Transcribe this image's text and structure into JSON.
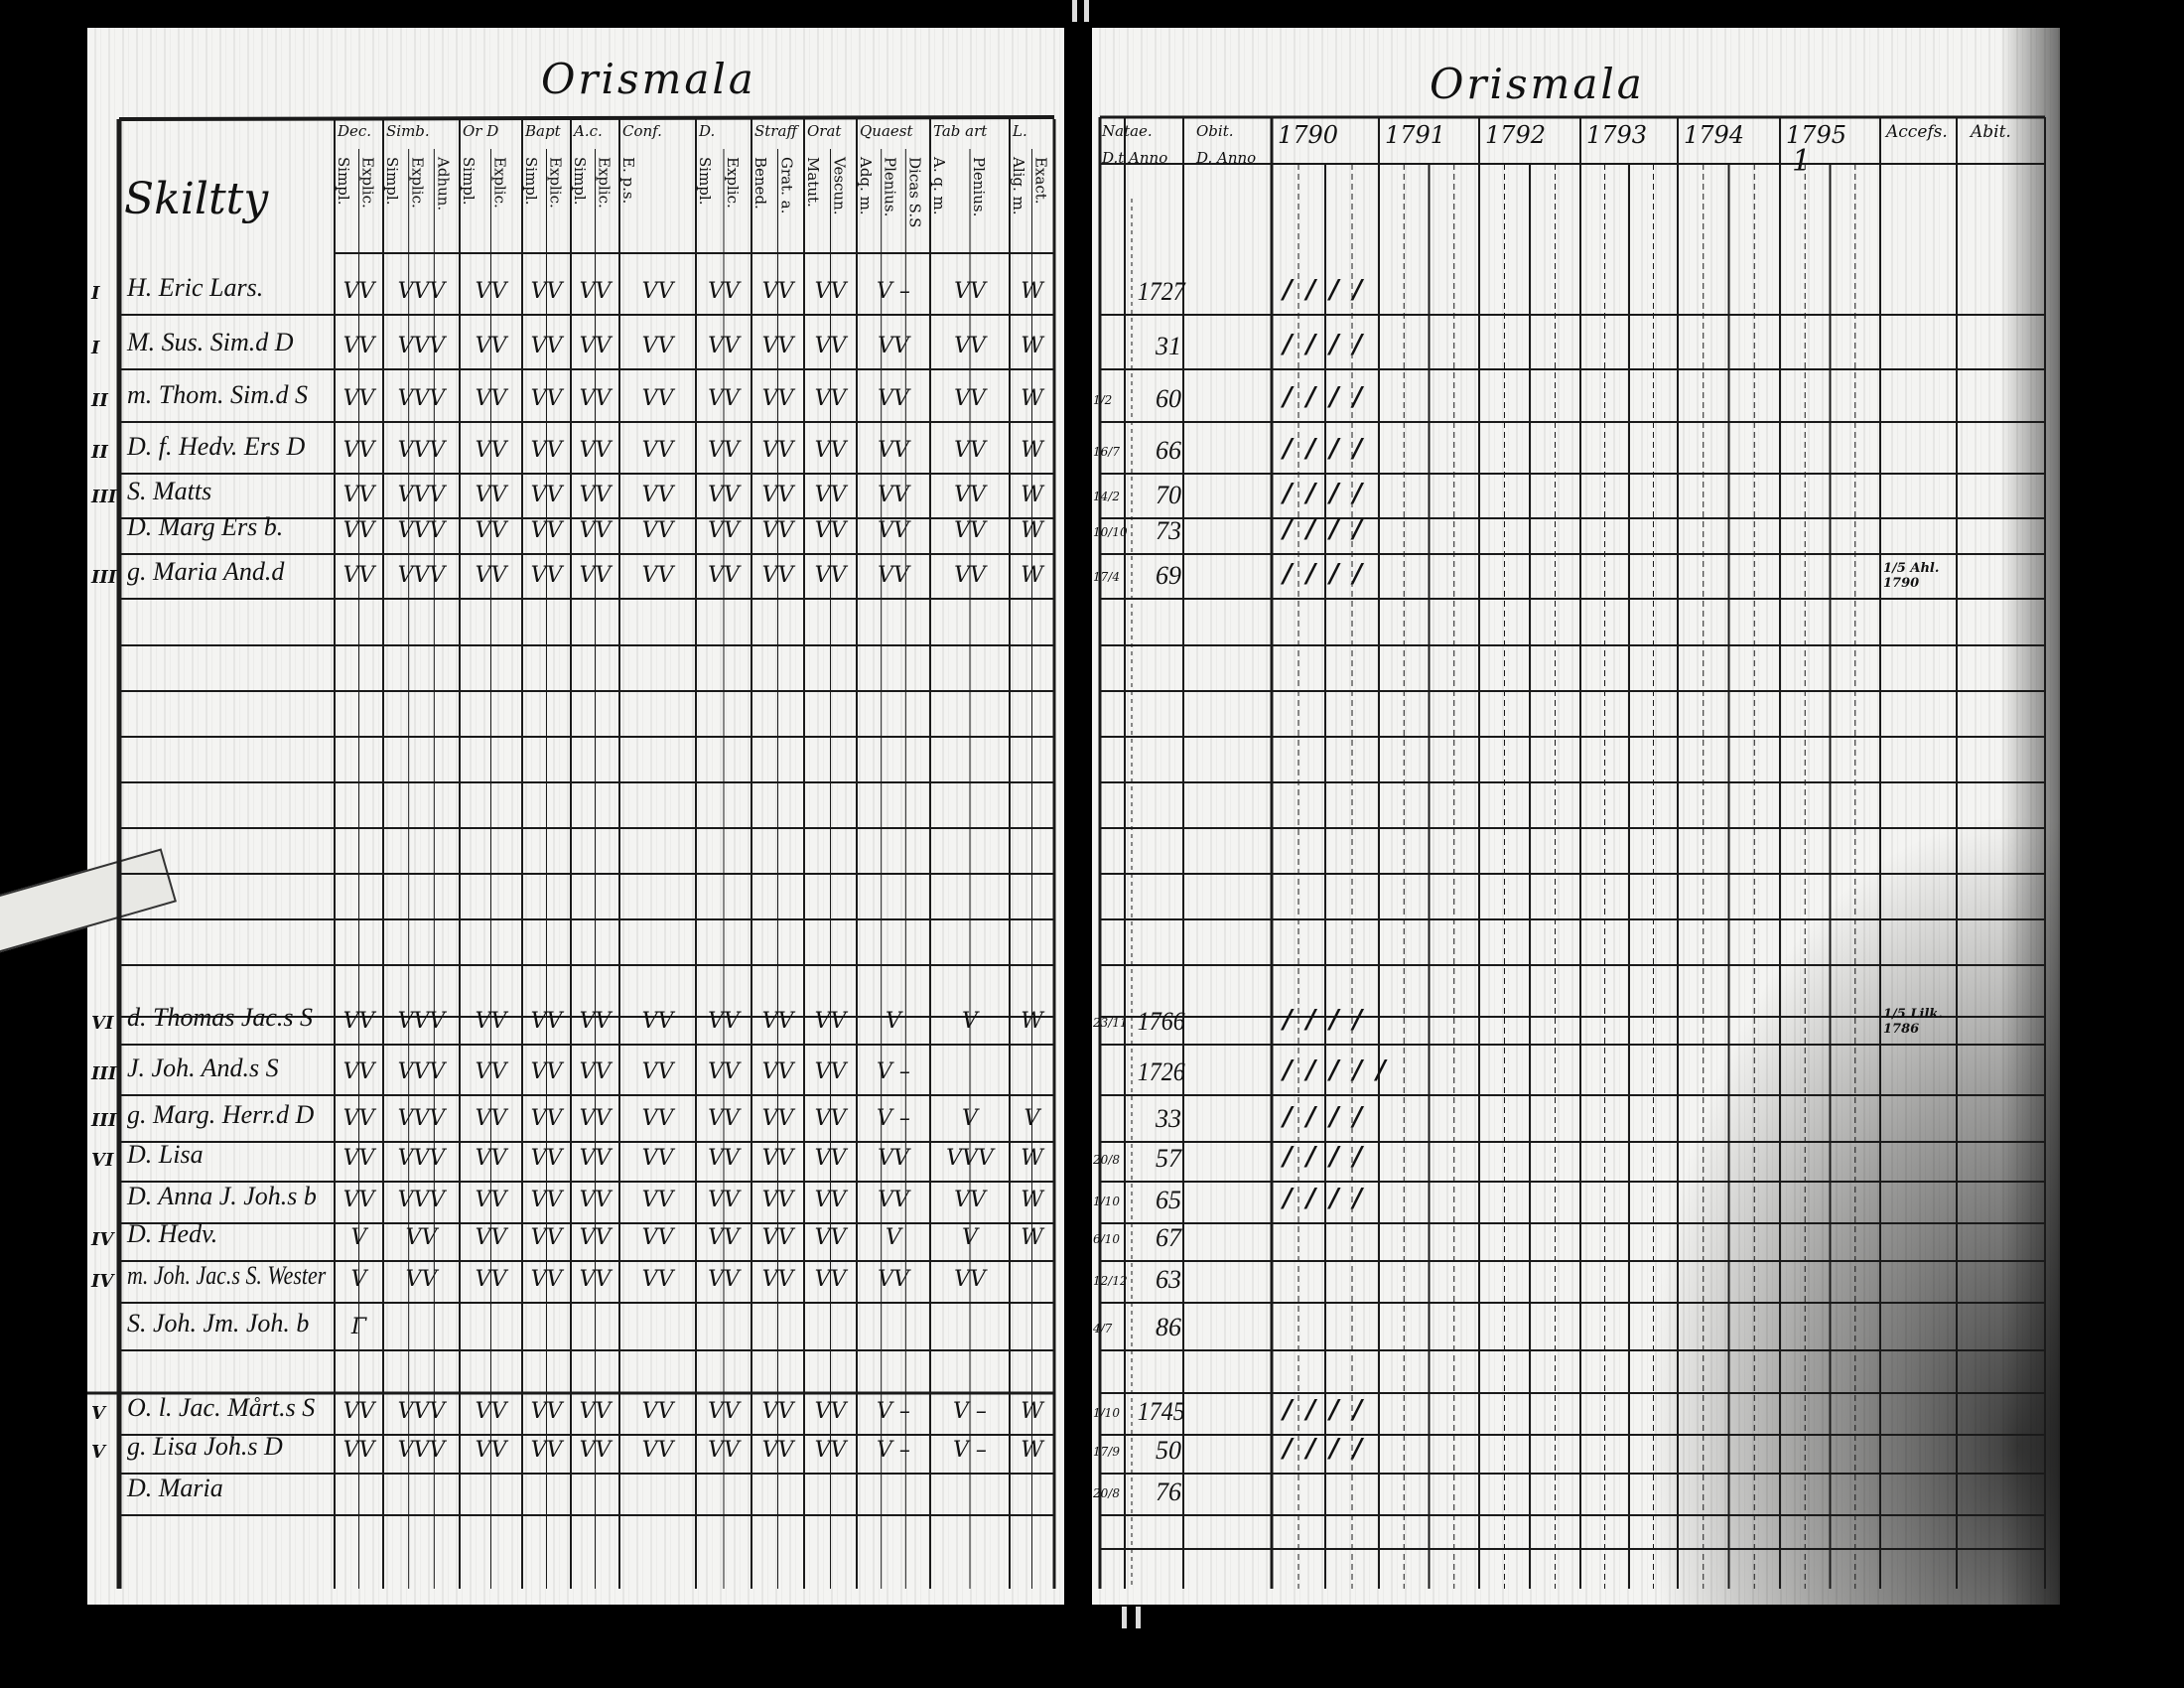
{
  "left": {
    "heading": "Orismala",
    "name_header": "Skiltty",
    "columns": [
      {
        "label": "Dec.",
        "sub": [
          "Simpl.",
          "Explic."
        ]
      },
      {
        "label": "Simb.",
        "sub": [
          "Simpl.",
          "Explic.",
          "Adhun."
        ]
      },
      {
        "label": "Or D",
        "sub": [
          "Simpl.",
          "Explic."
        ]
      },
      {
        "label": "Bapt",
        "sub": [
          "Simpl.",
          "Explic."
        ]
      },
      {
        "label": "A.c.",
        "sub": [
          "Simpl.",
          "Explic."
        ]
      },
      {
        "label": "Conf.",
        "sub": [
          "E. p.s."
        ]
      },
      {
        "label": "D.",
        "sub": [
          "Simpl.",
          "Explic."
        ]
      },
      {
        "label": "Straff",
        "sub": [
          "Bened.",
          "Grat. a."
        ]
      },
      {
        "label": "Orat",
        "sub": [
          "Matut.",
          "Vescun."
        ]
      },
      {
        "label": "Quaest",
        "sub": [
          "Adq. m.",
          "Plenius.",
          "Dicas S.S"
        ]
      },
      {
        "label": "Tab art",
        "sub": [
          "A. q. m.",
          "Plenius."
        ]
      },
      {
        "label": "L.",
        "sub": [
          "Alig. m.",
          "Exact."
        ]
      }
    ]
  },
  "right": {
    "heading": "Orismala",
    "natae_header": "Natae.",
    "natae_sub": "D.t Anno",
    "obit_header": "Obit.",
    "obit_sub": "D. Anno",
    "years": [
      "1790",
      "1791",
      "1792",
      "1793",
      "1794",
      "1795"
    ],
    "accefs_header": "Accefs.",
    "abit_header": "Abit.",
    "year_1795_note": "1"
  },
  "rows": [
    {
      "margin": "I",
      "name": "H. Eric Lars.",
      "marks": [
        "VV",
        "VVV",
        "VV",
        "VV",
        "VV",
        "VV",
        "VV",
        "VV",
        "VV",
        "V –",
        "VV",
        "W"
      ],
      "day": "",
      "year": "1727",
      "ticks": "////",
      "note": ""
    },
    {
      "margin": "I",
      "name": "M. Sus. Sim.d D",
      "marks": [
        "VV",
        "VVV",
        "VV",
        "VV",
        "VV",
        "VV",
        "VV",
        "VV",
        "VV",
        "VV",
        "VV",
        "W"
      ],
      "day": "",
      "year": "31",
      "ticks": "////",
      "note": ""
    },
    {
      "margin": "II",
      "name": "m. Thom. Sim.d S",
      "marks": [
        "VV",
        "VVV",
        "VV",
        "VV",
        "VV",
        "VV",
        "VV",
        "VV",
        "VV",
        "VV",
        "VV",
        "W"
      ],
      "day": "1/2",
      "year": "60",
      "ticks": "////",
      "note": ""
    },
    {
      "margin": "II",
      "name": "D. f. Hedv. Ers D",
      "marks": [
        "VV",
        "VVV",
        "VV",
        "VV",
        "VV",
        "VV",
        "VV",
        "VV",
        "VV",
        "VV",
        "VV",
        "W"
      ],
      "day": "16/7",
      "year": "66",
      "ticks": "////",
      "note": ""
    },
    {
      "margin": "III",
      "name": "S. Matts",
      "marks": [
        "VV",
        "VVV",
        "VV",
        "VV",
        "VV",
        "VV",
        "VV",
        "VV",
        "VV",
        "VV",
        "VV",
        "W"
      ],
      "day": "14/2",
      "year": "70",
      "ticks": "////",
      "note": ""
    },
    {
      "margin": "",
      "name": "D. Marg  Ers b.",
      "marks": [
        "VV",
        "VVV",
        "VV",
        "VV",
        "VV",
        "VV",
        "VV",
        "VV",
        "VV",
        "VV",
        "VV",
        "W"
      ],
      "day": "10/10",
      "year": "73",
      "ticks": "////",
      "note": ""
    },
    {
      "margin": "III",
      "name": "g. Maria And.d",
      "marks": [
        "VV",
        "VVV",
        "VV",
        "VV",
        "VV",
        "VV",
        "VV",
        "VV",
        "VV",
        "VV",
        "VV",
        "W"
      ],
      "day": "17/4",
      "year": "69",
      "ticks": "////",
      "note": "1/5 Ahl. 1790"
    },
    {
      "margin": "VI",
      "name": "d. Thomas Jac.s S",
      "marks": [
        "VV",
        "VVV",
        "VV",
        "VV",
        "VV",
        "VV",
        "VV",
        "VV",
        "VV",
        "V",
        "V",
        "W"
      ],
      "day": "23/11",
      "year": "1766",
      "ticks": "////",
      "note": "1/5 Lilk. 1786"
    },
    {
      "margin": "III",
      "name": "J. Joh. And.s S",
      "marks": [
        "VV",
        "VVV",
        "VV",
        "VV",
        "VV",
        "VV",
        "VV",
        "VV",
        "VV",
        "V –",
        "",
        ""
      ],
      "day": "",
      "year": "1726",
      "ticks": "/////",
      "note": ""
    },
    {
      "margin": "III",
      "name": "g. Marg. Herr.d D",
      "marks": [
        "VV",
        "VVV",
        "VV",
        "VV",
        "VV",
        "VV",
        "VV",
        "VV",
        "VV",
        "V –",
        "V",
        "V"
      ],
      "day": "",
      "year": "33",
      "ticks": "////",
      "note": ""
    },
    {
      "margin": "VI",
      "name": "D. Lisa",
      "marks": [
        "VV",
        "VVV",
        "VV",
        "VV",
        "VV",
        "VV",
        "VV",
        "VV",
        "VV",
        "VV",
        "VVV",
        "W"
      ],
      "day": "20/8",
      "year": "57",
      "ticks": "////",
      "note": ""
    },
    {
      "margin": "",
      "name": "D. Anna   J. Joh.s b",
      "marks": [
        "VV",
        "VVV",
        "VV",
        "VV",
        "VV",
        "VV",
        "VV",
        "VV",
        "VV",
        "VV",
        "VV",
        "W"
      ],
      "day": "1/10",
      "year": "65",
      "ticks": "////",
      "note": ""
    },
    {
      "margin": "IV",
      "name": "D. Hedv.",
      "marks": [
        "V",
        "VV",
        "VV",
        "VV",
        "VV",
        "VV",
        "VV",
        "VV",
        "VV",
        "V",
        "V",
        "W"
      ],
      "day": "6/10",
      "year": "67",
      "ticks": "",
      "note": ""
    },
    {
      "margin": "IV",
      "name": "m. Joh. Jac.s S. Wester",
      "marks": [
        "V",
        "VV",
        "VV",
        "VV",
        "VV",
        "VV",
        "VV",
        "VV",
        "VV",
        "VV",
        "VV",
        ""
      ],
      "day": "12/12",
      "year": "63",
      "ticks": "",
      "note": ""
    },
    {
      "margin": "",
      "name": "S. Joh. Jm. Joh. b",
      "marks": [
        "Γ",
        "",
        "",
        "",
        "",
        "",
        "",
        "",
        "",
        "",
        "",
        ""
      ],
      "day": "4/7",
      "year": "86",
      "ticks": "",
      "note": ""
    },
    {
      "margin": "V",
      "name": "O. l. Jac. Mårt.s S",
      "marks": [
        "VV",
        "VVV",
        "VV",
        "VV",
        "VV",
        "VV",
        "VV",
        "VV",
        "VV",
        "V –",
        "V –",
        "W"
      ],
      "day": "1/10",
      "year": "1745",
      "ticks": "////",
      "note": ""
    },
    {
      "margin": "V",
      "name": "g. Lisa Joh.s D",
      "marks": [
        "VV",
        "VVV",
        "VV",
        "VV",
        "VV",
        "VV",
        "VV",
        "VV",
        "VV",
        "V –",
        "V –",
        "W"
      ],
      "day": "17/9",
      "year": "50",
      "ticks": "////",
      "note": ""
    },
    {
      "margin": "",
      "name": "D. Maria",
      "marks": [
        "",
        "",
        "",
        "",
        "",
        "",
        "",
        "",
        "",
        "",
        "",
        ""
      ],
      "day": "20/8",
      "year": "76",
      "ticks": "",
      "note": ""
    }
  ],
  "colors": {
    "paper": "#f4f4f2",
    "ink": "#111111",
    "background": "#000000"
  }
}
